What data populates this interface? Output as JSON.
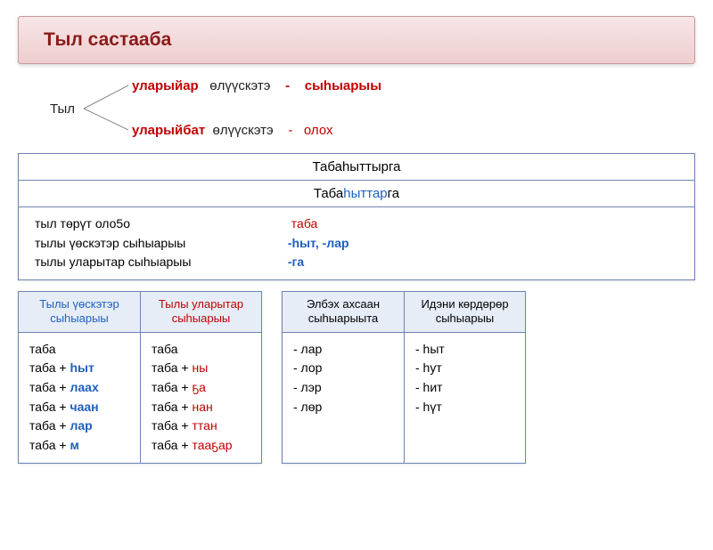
{
  "title": "Тыл  састааба",
  "branch": {
    "root": "Тыл",
    "top": {
      "red": "уларыйар",
      "black": "өлүүскэтэ",
      "dash": "-",
      "tail": "сыһыарыы"
    },
    "bot": {
      "red": "уларыйбат",
      "black": "өлүүскэтэ",
      "dash": "-",
      "tail": "олох"
    }
  },
  "big": {
    "row1": "Табаһыттырга",
    "row2": {
      "pre": "Таба",
      "blue": "һыттар",
      "post": "га"
    },
    "left": {
      "l1": "тыл  төрүт  оло5о",
      "l2": "тылы  үөскэтэр  сыһыарыы",
      "l3": "тылы  уларытар  сыһыарыы"
    },
    "right": {
      "r1": "таба",
      "r2_a": "-һыт",
      "r2_b": ",  -лар",
      "r3": "-га"
    }
  },
  "tables": {
    "t1": {
      "h": "Тылы үөскэтэр сыһыарыы",
      "rows": [
        {
          "a": "таба",
          "b": ""
        },
        {
          "a": "таба + ",
          "b": "һыт"
        },
        {
          "a": "таба + ",
          "b": "лаах"
        },
        {
          "a": "таба + ",
          "b": "чаан"
        },
        {
          "a": "таба + ",
          "b": "лар"
        },
        {
          "a": "таба + ",
          "b": "м"
        }
      ]
    },
    "t2": {
      "h": "Тылы  уларытар сыһыарыы",
      "rows": [
        {
          "a": "таба",
          "b": ""
        },
        {
          "a": "таба + ",
          "b": "ны"
        },
        {
          "a": "таба + ",
          "b": "ҕа"
        },
        {
          "a": "таба + ",
          "b": "нан"
        },
        {
          "a": "таба + ",
          "b": "ттан"
        },
        {
          "a": "таба + ",
          "b": "тааҕар"
        }
      ]
    },
    "t3": {
      "h": "Элбэх  ахсаан сыһыарыыта",
      "rows": [
        "-  лар",
        "-  лор",
        "-  лэр",
        "-  лөр"
      ]
    },
    "t4": {
      "h": "Идэни  көрдөрөр сыһыарыы",
      "rows": [
        "- һыт",
        "- һут",
        "- һит",
        "- һүт"
      ]
    }
  },
  "colors": {
    "red": "#c00000",
    "blue": "#1f5fbf",
    "border": "#6b84b0",
    "headerBg": "#e6edf7",
    "titleBg1": "#f8e6e6",
    "titleBg2": "#eecdcf"
  }
}
